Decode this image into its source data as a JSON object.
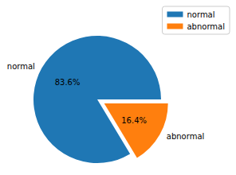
{
  "chart_data": {
    "type": "pie",
    "categories": [
      "normal",
      "abnormal"
    ],
    "values": [
      83.6,
      16.4
    ],
    "value_labels": [
      "83.6%",
      "16.4%"
    ],
    "colors": [
      "#1f77b4",
      "#ff7f0e"
    ],
    "data_labels": true,
    "legend": "upper right"
  }
}
